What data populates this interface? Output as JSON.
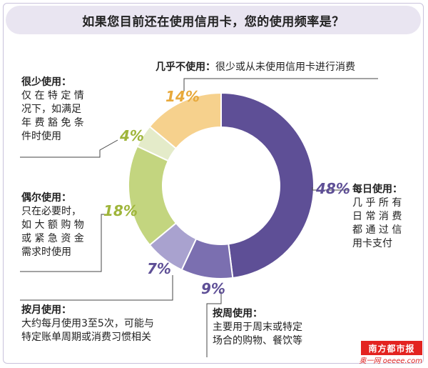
{
  "chart_data": {
    "type": "pie",
    "title": "如果您目前还在使用信用卡，您的使用频率是？",
    "slices": [
      {
        "label": "每日使用：",
        "desc": "几乎所有日常消费都通过信用卡支付",
        "value": 48,
        "pct_label": "48%",
        "color": "#5e4f96"
      },
      {
        "label": "按周使用：",
        "desc": "主要用于周末或特定场合的购物、餐饮等",
        "value": 9,
        "pct_label": "9%",
        "color": "#7b6fb0"
      },
      {
        "label": "按月使用：",
        "desc": "大约每月使用3至5次，可能与特定账单周期或消费习惯相关",
        "value": 7,
        "pct_label": "7%",
        "color": "#a9a2cf"
      },
      {
        "label": "偶尔使用：",
        "desc": "只在必要时，如大额购物或紧急资金需求时使用",
        "value": 18,
        "pct_label": "18%",
        "color": "#c3d57f"
      },
      {
        "label": "很少使用：",
        "desc": "仅在特定情况下，如满足年费豁免条件时使用",
        "value": 4,
        "pct_label": "4%",
        "color": "#e4ebc9"
      },
      {
        "label": "几乎不使用：",
        "desc": "很少或从未使用信用卡进行消费",
        "value": 14,
        "pct_label": "14%",
        "color": "#f6d18d"
      }
    ]
  },
  "labels": {
    "daily": {
      "head": "每日使用：",
      "lines": [
        "几 乎 所 有",
        "日 常 消 费",
        "都 通 过 信",
        "用卡支付"
      ]
    },
    "weekly": {
      "head": "按周使用：",
      "lines": [
        "主要用于周末或特定",
        "场合的购物、餐饮等"
      ]
    },
    "monthly": {
      "head": "按月使用：",
      "lines": [
        "大约每月使用3至5次，可能与",
        "特定账单周期或消费习惯相关"
      ]
    },
    "occasional": {
      "head": "偶尔使用：",
      "lines": [
        "只在必要时，",
        "如 大 额 购 物",
        "或 紧 急 资 金",
        "需求时使用"
      ]
    },
    "rarely": {
      "head": "很少使用：",
      "lines": [
        "仅 在 特 定 情",
        "况下，如满足",
        "年 费 豁 免 条",
        "件时使用"
      ]
    },
    "almost_never": {
      "head": "几乎不使用：",
      "text": "很少或从未使用信用卡进行消费"
    }
  },
  "logo": {
    "text": "南方都市报",
    "sub": "奥一网 oeeee.com"
  }
}
